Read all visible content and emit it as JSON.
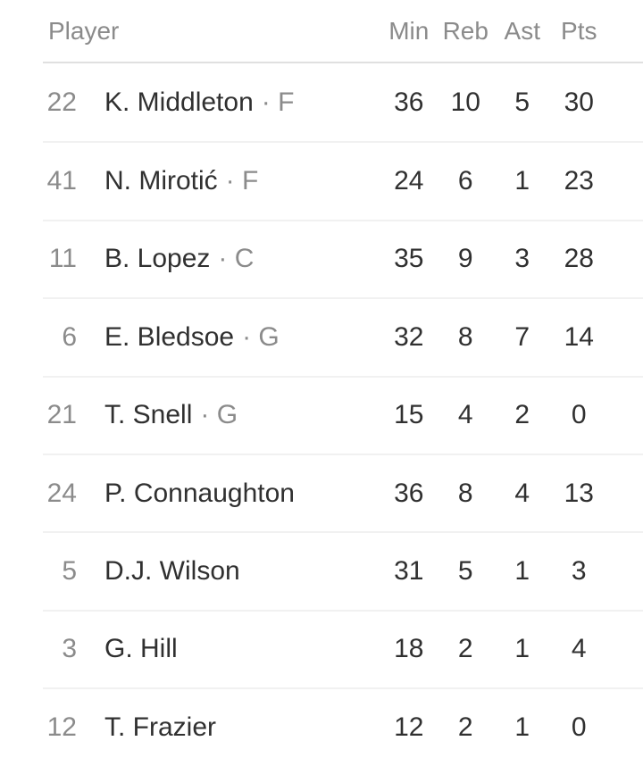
{
  "table": {
    "position_separator": "·",
    "columns": {
      "player": "Player",
      "min": "Min",
      "reb": "Reb",
      "ast": "Ast",
      "pts": "Pts"
    },
    "rows": [
      {
        "number": "22",
        "name": "K. Middleton",
        "position": "F",
        "min": "36",
        "reb": "10",
        "ast": "5",
        "pts": "30"
      },
      {
        "number": "41",
        "name": "N. Mirotić",
        "position": "F",
        "min": "24",
        "reb": "6",
        "ast": "1",
        "pts": "23"
      },
      {
        "number": "11",
        "name": "B. Lopez",
        "position": "C",
        "min": "35",
        "reb": "9",
        "ast": "3",
        "pts": "28"
      },
      {
        "number": "6",
        "name": "E. Bledsoe",
        "position": "G",
        "min": "32",
        "reb": "8",
        "ast": "7",
        "pts": "14"
      },
      {
        "number": "21",
        "name": "T. Snell",
        "position": "G",
        "min": "15",
        "reb": "4",
        "ast": "2",
        "pts": "0"
      },
      {
        "number": "24",
        "name": "P. Connaughton",
        "position": "",
        "min": "36",
        "reb": "8",
        "ast": "4",
        "pts": "13"
      },
      {
        "number": "5",
        "name": "D.J. Wilson",
        "position": "",
        "min": "31",
        "reb": "5",
        "ast": "1",
        "pts": "3"
      },
      {
        "number": "3",
        "name": "G. Hill",
        "position": "",
        "min": "18",
        "reb": "2",
        "ast": "1",
        "pts": "4"
      },
      {
        "number": "12",
        "name": "T. Frazier",
        "position": "",
        "min": "12",
        "reb": "2",
        "ast": "1",
        "pts": "0"
      }
    ],
    "colors": {
      "text_primary": "#303030",
      "text_secondary": "#8b8b8b",
      "divider_header": "#e0e0e0",
      "divider_row": "#f1f1f1",
      "background": "#ffffff"
    }
  }
}
